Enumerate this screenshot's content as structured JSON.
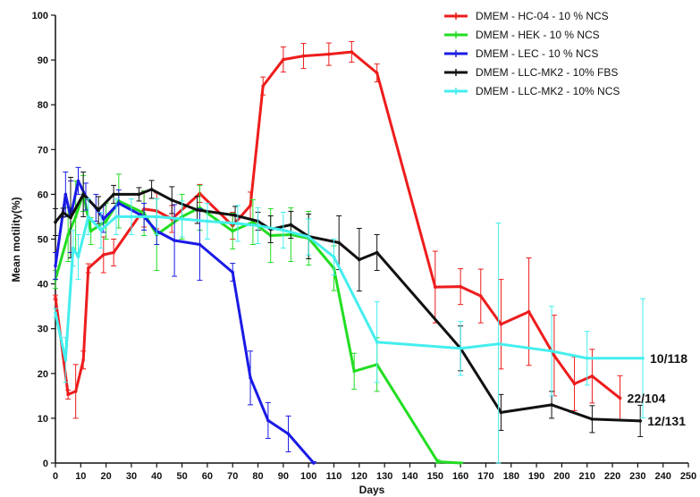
{
  "chart_data": {
    "type": "line",
    "xlabel": "Days",
    "ylabel": "Mean motility(%)",
    "xlim": [
      0,
      250
    ],
    "ylim": [
      0,
      100
    ],
    "x_ticks": [
      0,
      10,
      20,
      30,
      40,
      50,
      60,
      70,
      80,
      90,
      100,
      110,
      120,
      130,
      140,
      150,
      160,
      170,
      180,
      190,
      200,
      210,
      220,
      230,
      240,
      250
    ],
    "y_ticks": [
      0,
      10,
      20,
      30,
      40,
      50,
      60,
      70,
      80,
      90,
      100
    ],
    "grid": false,
    "legend_position": "top-right",
    "series": [
      {
        "name": "DMEM - HC-04 - 10 % NCS",
        "color": "#ee1c1c",
        "points": [
          [
            0,
            37
          ],
          [
            5,
            15.3
          ],
          [
            8,
            16
          ],
          [
            11,
            23
          ],
          [
            13,
            43.5
          ],
          [
            19,
            46.5
          ],
          [
            23,
            47
          ],
          [
            35,
            56.7
          ],
          [
            40,
            56.3
          ],
          [
            46,
            54.5
          ],
          [
            57,
            60.2
          ],
          [
            70,
            53
          ],
          [
            77,
            57.5
          ],
          [
            82,
            84.2
          ],
          [
            90,
            90.1
          ],
          [
            98,
            90.9
          ],
          [
            108,
            91.3
          ],
          [
            117,
            91.8
          ],
          [
            127,
            87.1
          ],
          [
            150,
            39.3
          ],
          [
            160,
            39.4
          ],
          [
            168,
            37.3
          ],
          [
            176,
            31
          ],
          [
            187,
            33.8
          ],
          [
            197,
            24
          ],
          [
            205,
            17.7
          ],
          [
            212,
            19.4
          ],
          [
            223,
            14.5
          ]
        ],
        "errors": [
          0.5,
          1,
          6,
          2,
          1,
          4,
          3,
          4,
          4,
          3,
          2,
          3,
          3,
          2,
          2.8,
          2.8,
          2.5,
          2.3,
          2,
          8,
          4,
          6,
          10,
          12,
          9,
          6,
          6,
          5
        ],
        "end_label": "22/104"
      },
      {
        "name": "DMEM - HEK - 10 % NCS",
        "color": "#22dd22",
        "points": [
          [
            0,
            41
          ],
          [
            5,
            51
          ],
          [
            8,
            55
          ],
          [
            11,
            60.2
          ],
          [
            14,
            51.8
          ],
          [
            20,
            54
          ],
          [
            25,
            58.5
          ],
          [
            35,
            55.8
          ],
          [
            40,
            51
          ],
          [
            50,
            55
          ],
          [
            57,
            57
          ],
          [
            70,
            51.8
          ],
          [
            78,
            53.8
          ],
          [
            85,
            50.8
          ],
          [
            93,
            51
          ],
          [
            100,
            50.2
          ],
          [
            110,
            43.5
          ],
          [
            118,
            20.5
          ],
          [
            127,
            22
          ],
          [
            151,
            0.3
          ],
          [
            160,
            0
          ]
        ],
        "errors": [
          2,
          6,
          8,
          4,
          3,
          4,
          6,
          5,
          8,
          5,
          5,
          4,
          5,
          6,
          6,
          6,
          5,
          4,
          6,
          0.5,
          0.2
        ]
      },
      {
        "name": "DMEM - LEC - 10 % NCS",
        "color": "#1a1ae6",
        "points": [
          [
            0,
            44
          ],
          [
            4,
            60
          ],
          [
            6,
            55
          ],
          [
            9,
            63
          ],
          [
            12,
            59.5
          ],
          [
            16,
            57
          ],
          [
            19,
            54.5
          ],
          [
            25,
            58
          ],
          [
            35,
            55
          ],
          [
            40,
            51.8
          ],
          [
            47,
            49.7
          ],
          [
            57,
            48.8
          ],
          [
            70,
            42.6
          ],
          [
            77,
            19
          ],
          [
            84,
            9.5
          ],
          [
            92,
            6.5
          ],
          [
            102,
            0
          ]
        ],
        "errors": [
          3,
          5,
          8,
          3,
          3,
          3,
          3,
          3,
          3,
          3,
          8,
          8,
          2,
          6,
          4,
          4,
          0.3
        ]
      },
      {
        "name": "DMEM - LLC-MK2 - 10% FBS",
        "color": "#111111",
        "points": [
          [
            0,
            53.8
          ],
          [
            3,
            55.9
          ],
          [
            6,
            54.8
          ],
          [
            11,
            60
          ],
          [
            17,
            56.5
          ],
          [
            23,
            60
          ],
          [
            33,
            60
          ],
          [
            38,
            61.1
          ],
          [
            46,
            58.7
          ],
          [
            56,
            56.5
          ],
          [
            71,
            55.3
          ],
          [
            80,
            54
          ],
          [
            85,
            52.2
          ],
          [
            93,
            53.2
          ],
          [
            100,
            50.6
          ],
          [
            112,
            49.2
          ],
          [
            120,
            45.4
          ],
          [
            127,
            47
          ],
          [
            160,
            25.6
          ],
          [
            176,
            11.3
          ],
          [
            196,
            13
          ],
          [
            212,
            9.8
          ],
          [
            231,
            9.4
          ]
        ],
        "errors": [
          3,
          1,
          9,
          5,
          3,
          2,
          1.5,
          2,
          3,
          3,
          2,
          2,
          3,
          3,
          5,
          6,
          7,
          4,
          5,
          4,
          3,
          3,
          3.5
        ],
        "end_label": "12/131"
      },
      {
        "name": "DMEM - LLC-MK2 - 10% NCS",
        "color": "#44eeee",
        "points": [
          [
            0,
            33.5
          ],
          [
            4,
            23
          ],
          [
            7,
            48
          ],
          [
            9,
            46
          ],
          [
            13,
            55
          ],
          [
            18,
            52
          ],
          [
            24,
            55
          ],
          [
            30,
            55
          ],
          [
            40,
            55
          ],
          [
            50,
            54.5
          ],
          [
            60,
            54
          ],
          [
            72,
            53.5
          ],
          [
            80,
            53
          ],
          [
            90,
            52
          ],
          [
            100,
            50.5
          ],
          [
            110,
            46
          ],
          [
            127,
            27
          ],
          [
            160,
            25.6
          ],
          [
            175,
            26.6
          ],
          [
            196,
            25
          ],
          [
            210,
            23.4
          ],
          [
            232,
            23.4
          ]
        ],
        "errors": [
          1,
          5,
          4,
          5,
          4,
          4,
          4,
          4,
          4,
          4,
          4,
          4,
          4,
          4,
          4,
          4,
          9,
          6,
          27,
          10,
          6,
          13.3
        ],
        "end_label": "10/118"
      }
    ]
  }
}
